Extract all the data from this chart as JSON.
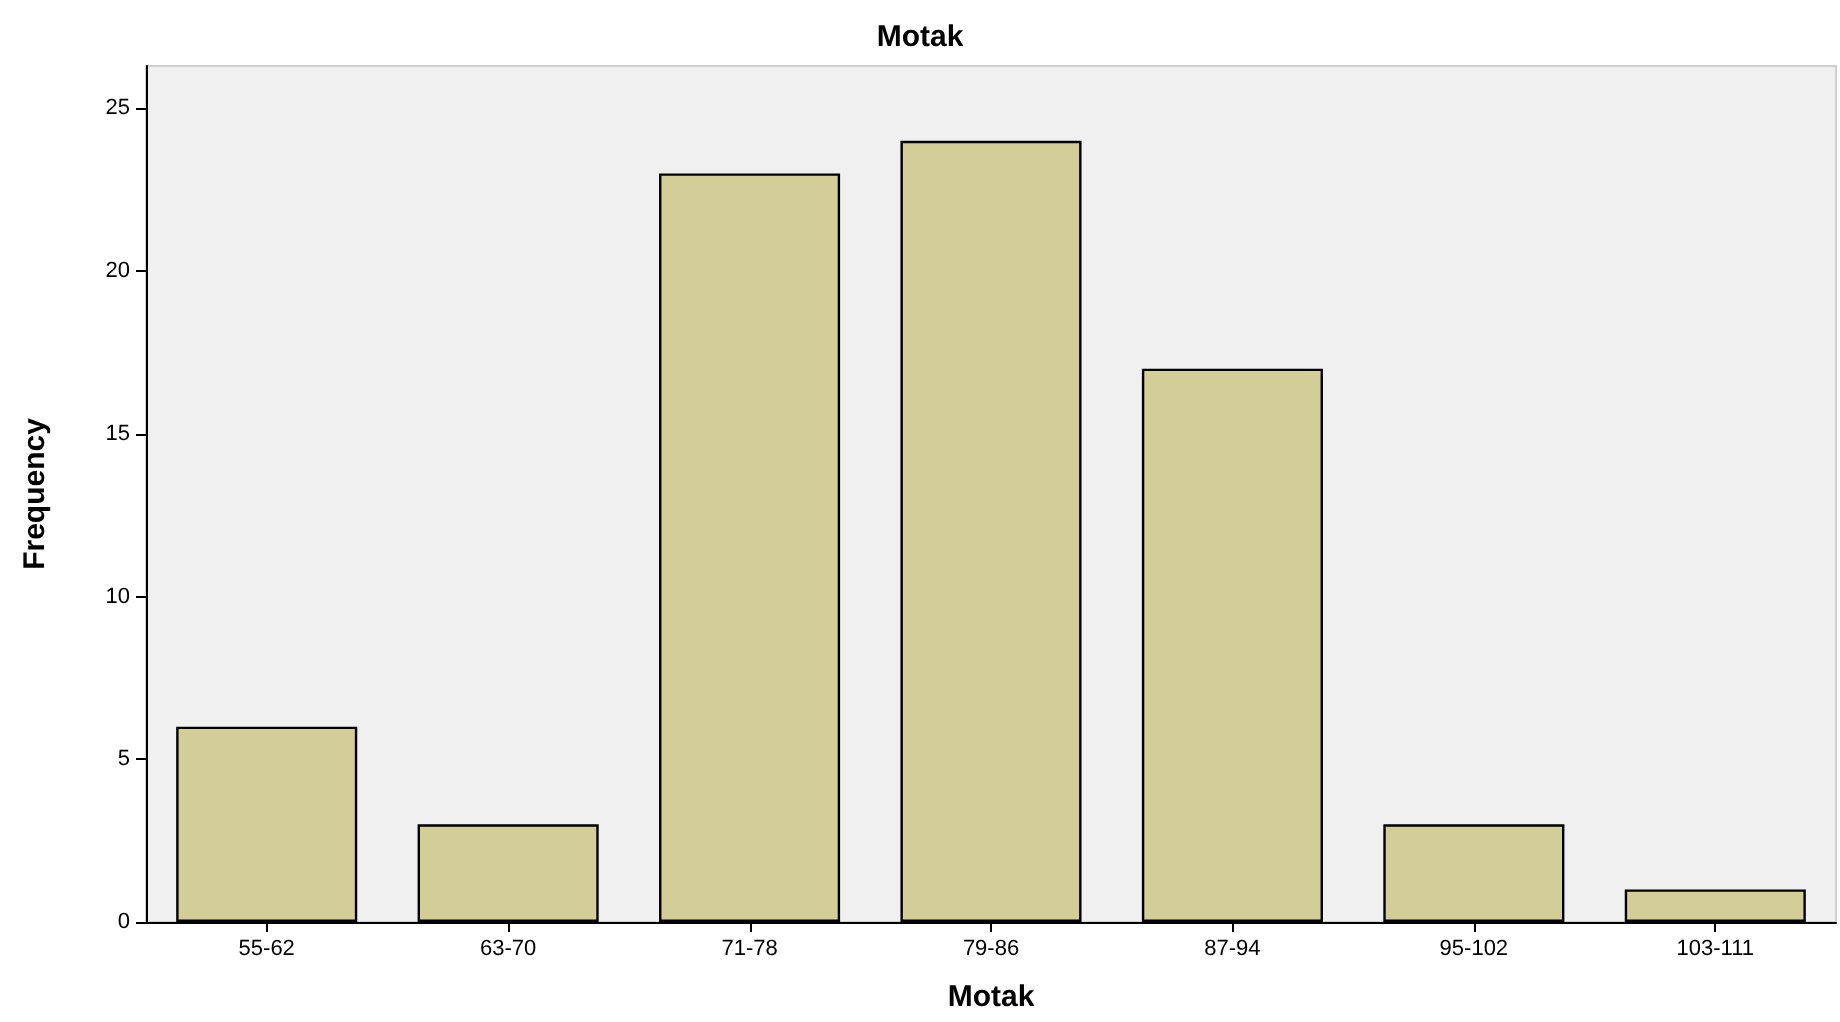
{
  "chart_data": {
    "type": "bar",
    "title": "Motak",
    "xlabel": "Motak",
    "ylabel": "Frequency",
    "categories": [
      "55-62",
      "63-70",
      "71-78",
      "79-86",
      "87-94",
      "95-102",
      "103-111"
    ],
    "values": [
      6,
      3,
      23,
      24,
      17,
      3,
      1
    ],
    "color": "#d3ce97",
    "ylim": [
      0,
      26.3
    ],
    "yticks": [
      0,
      5,
      10,
      15,
      20,
      25
    ],
    "grid": false
  }
}
